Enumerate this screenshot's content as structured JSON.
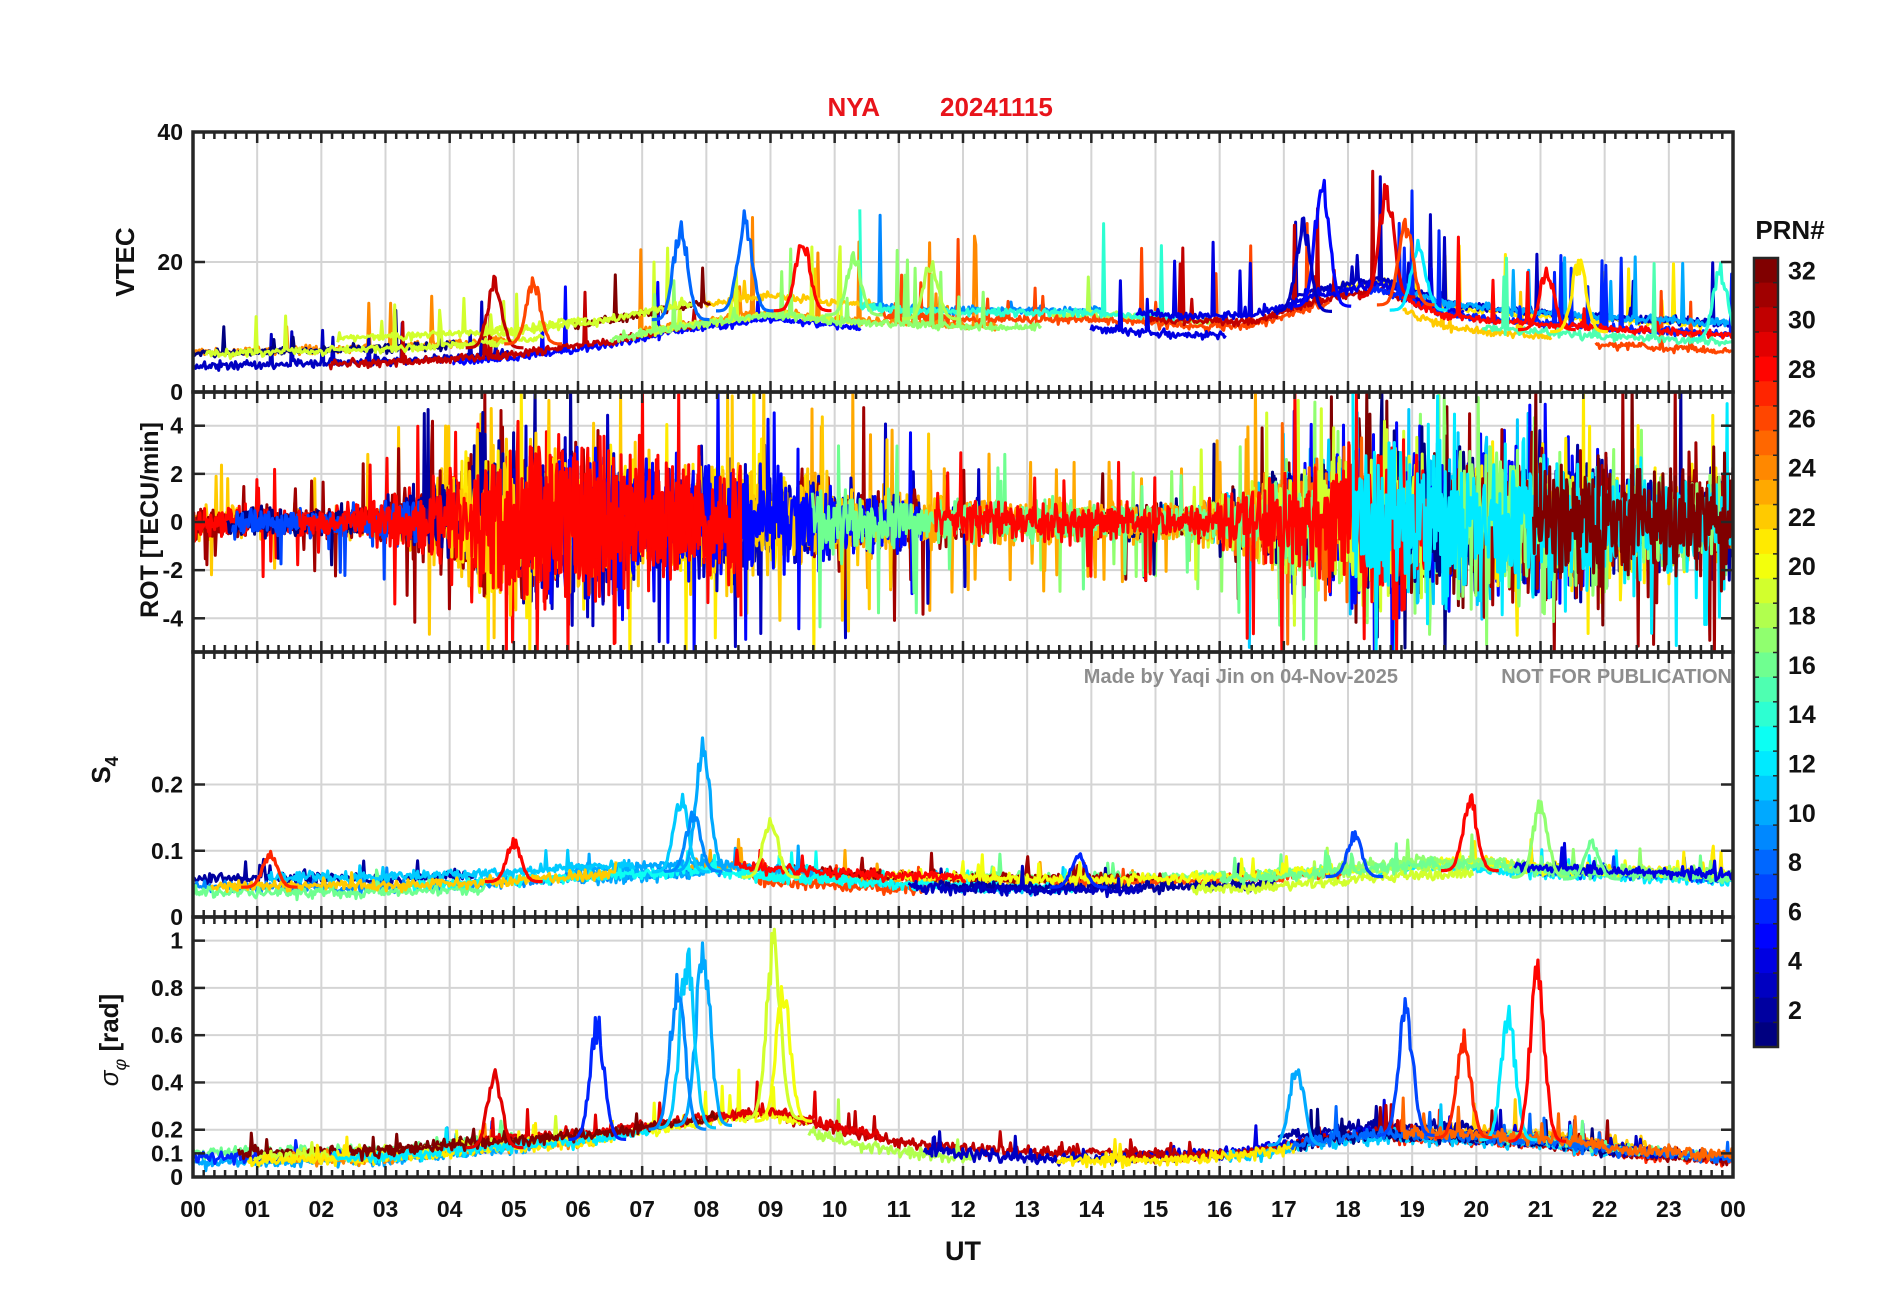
{
  "chart_data": {
    "type": "line",
    "title": {
      "station": "NYA",
      "date": "20241115"
    },
    "xlabel": "UT",
    "x_ticks": [
      "00",
      "01",
      "02",
      "03",
      "04",
      "05",
      "06",
      "07",
      "08",
      "09",
      "10",
      "11",
      "12",
      "13",
      "14",
      "15",
      "16",
      "17",
      "18",
      "19",
      "20",
      "21",
      "22",
      "23",
      "00"
    ],
    "xlim": [
      0,
      24
    ],
    "watermark": {
      "author": "Made by Yaqi Jin on 04-Nov-2025",
      "notice": "NOT FOR PUBLICATION"
    },
    "colorbar": {
      "label": "PRN#",
      "range": [
        1,
        32
      ],
      "tick_labels": [
        "2",
        "4",
        "6",
        "8",
        "10",
        "12",
        "14",
        "16",
        "18",
        "20",
        "22",
        "24",
        "26",
        "28",
        "30",
        "32"
      ]
    },
    "panels": [
      {
        "id": "vtec",
        "ylabel": "VTEC",
        "ylim": [
          0,
          40
        ],
        "y_ticks": [
          0,
          20,
          40
        ],
        "y_tick_labels": [
          "0",
          "20",
          "40"
        ],
        "profile": [
          [
            0,
            5
          ],
          [
            2,
            5.5
          ],
          [
            3.5,
            6
          ],
          [
            5,
            7
          ],
          [
            6.5,
            9
          ],
          [
            7.5,
            11
          ],
          [
            9,
            13
          ],
          [
            10,
            12
          ],
          [
            12,
            11
          ],
          [
            13,
            11
          ],
          [
            14,
            11
          ],
          [
            15.5,
            10
          ],
          [
            16.5,
            10
          ],
          [
            17.5,
            13
          ],
          [
            18.5,
            15
          ],
          [
            19.5,
            11
          ],
          [
            20.5,
            10
          ],
          [
            22,
            9
          ],
          [
            24,
            8
          ]
        ],
        "spread": 2.5,
        "spike_mult": 1.3,
        "noise": 0.6,
        "peaks": [
          [
            7.6,
            27,
            8
          ],
          [
            8.6,
            28,
            8
          ],
          [
            9.5,
            25,
            28
          ],
          [
            17.6,
            35,
            5
          ],
          [
            18.6,
            33,
            29
          ],
          [
            17.3,
            27,
            3
          ],
          [
            19.1,
            24,
            12
          ],
          [
            18.9,
            27,
            26
          ],
          [
            10.3,
            22,
            17
          ],
          [
            11.5,
            21,
            18
          ],
          [
            4.7,
            18,
            30
          ],
          [
            5.3,
            18,
            26
          ],
          [
            21.1,
            20,
            28
          ],
          [
            21.6,
            21,
            21
          ],
          [
            23.8,
            20,
            14
          ]
        ]
      },
      {
        "id": "rot",
        "ylabel": "ROT [TECU/min]",
        "ylim": [
          -5.4,
          5.4
        ],
        "y_ticks": [
          -4,
          -2,
          0,
          2,
          4
        ],
        "y_tick_labels": [
          "-4",
          "-2",
          "0",
          "2",
          "4"
        ],
        "profile": [
          [
            0,
            0.7
          ],
          [
            2,
            0.5
          ],
          [
            3,
            0.8
          ],
          [
            4,
            1.8
          ],
          [
            4.5,
            3.2
          ],
          [
            6.5,
            2.8
          ],
          [
            7.2,
            2.2
          ],
          [
            8.5,
            2.3
          ],
          [
            9.5,
            1.8
          ],
          [
            10.5,
            1.2
          ],
          [
            12,
            0.8
          ],
          [
            14,
            0.7
          ],
          [
            15.5,
            0.6
          ],
          [
            16.5,
            1.4
          ],
          [
            17.5,
            2.5
          ],
          [
            18.5,
            3.3
          ],
          [
            20,
            3
          ],
          [
            21,
            3
          ],
          [
            22.5,
            2.2
          ],
          [
            24,
            2
          ]
        ],
        "peaks": []
      },
      {
        "id": "s4",
        "ylabel": "S4",
        "ylim": [
          0,
          0.4
        ],
        "y_ticks": [
          0,
          0.1,
          0.2
        ],
        "y_tick_labels": [
          "0",
          "0.1",
          "0.2"
        ],
        "profile": [
          [
            0,
            0.045
          ],
          [
            3,
            0.045
          ],
          [
            4.5,
            0.05
          ],
          [
            6,
            0.06
          ],
          [
            7,
            0.065
          ],
          [
            8,
            0.07
          ],
          [
            9,
            0.06
          ],
          [
            11,
            0.05
          ],
          [
            13,
            0.045
          ],
          [
            15,
            0.045
          ],
          [
            16.5,
            0.05
          ],
          [
            18,
            0.06
          ],
          [
            19,
            0.07
          ],
          [
            20,
            0.07
          ],
          [
            21,
            0.06
          ],
          [
            22.5,
            0.055
          ],
          [
            24,
            0.05
          ]
        ],
        "spread": 0.012,
        "spike_mult": 0.7,
        "noise": 0.008,
        "peaks": [
          [
            7.95,
            0.28,
            10
          ],
          [
            7.6,
            0.19,
            11
          ],
          [
            7.8,
            0.17,
            9
          ],
          [
            9.0,
            0.16,
            19
          ],
          [
            19.9,
            0.19,
            28
          ],
          [
            21.0,
            0.185,
            17
          ],
          [
            18.1,
            0.13,
            7
          ],
          [
            5.0,
            0.12,
            28
          ],
          [
            1.2,
            0.1,
            27
          ],
          [
            13.8,
            0.1,
            6
          ],
          [
            21.8,
            0.12,
            16
          ]
        ]
      },
      {
        "id": "sigma",
        "ylabel": "σφ [rad]",
        "ylim": [
          0,
          1.1
        ],
        "y_ticks": [
          0,
          0.1,
          0.2,
          0.4,
          0.6,
          0.8,
          1
        ],
        "y_tick_labels": [
          "0",
          "0.1",
          "0.2",
          "0.4",
          "0.6",
          "0.8",
          "1"
        ],
        "profile": [
          [
            0,
            0.07
          ],
          [
            3,
            0.08
          ],
          [
            4.5,
            0.12
          ],
          [
            6,
            0.15
          ],
          [
            7,
            0.18
          ],
          [
            8,
            0.22
          ],
          [
            9,
            0.25
          ],
          [
            10,
            0.18
          ],
          [
            11,
            0.12
          ],
          [
            13,
            0.08
          ],
          [
            15,
            0.08
          ],
          [
            16.5,
            0.1
          ],
          [
            17.5,
            0.15
          ],
          [
            18.5,
            0.18
          ],
          [
            19.5,
            0.17
          ],
          [
            21,
            0.15
          ],
          [
            22.5,
            0.1
          ],
          [
            24,
            0.08
          ]
        ],
        "spread": 0.03,
        "spike_mult": 0.9,
        "noise": 0.025,
        "peaks": [
          [
            7.95,
            1.05,
            10
          ],
          [
            7.7,
            1.0,
            11
          ],
          [
            7.55,
            0.88,
            9
          ],
          [
            9.05,
            1.08,
            19
          ],
          [
            9.2,
            0.85,
            20
          ],
          [
            6.3,
            0.7,
            6
          ],
          [
            18.9,
            0.76,
            7
          ],
          [
            20.5,
            0.73,
            12
          ],
          [
            20.95,
            0.93,
            28
          ],
          [
            4.7,
            0.47,
            29
          ],
          [
            19.8,
            0.63,
            27
          ],
          [
            17.2,
            0.5,
            10
          ]
        ]
      }
    ]
  }
}
